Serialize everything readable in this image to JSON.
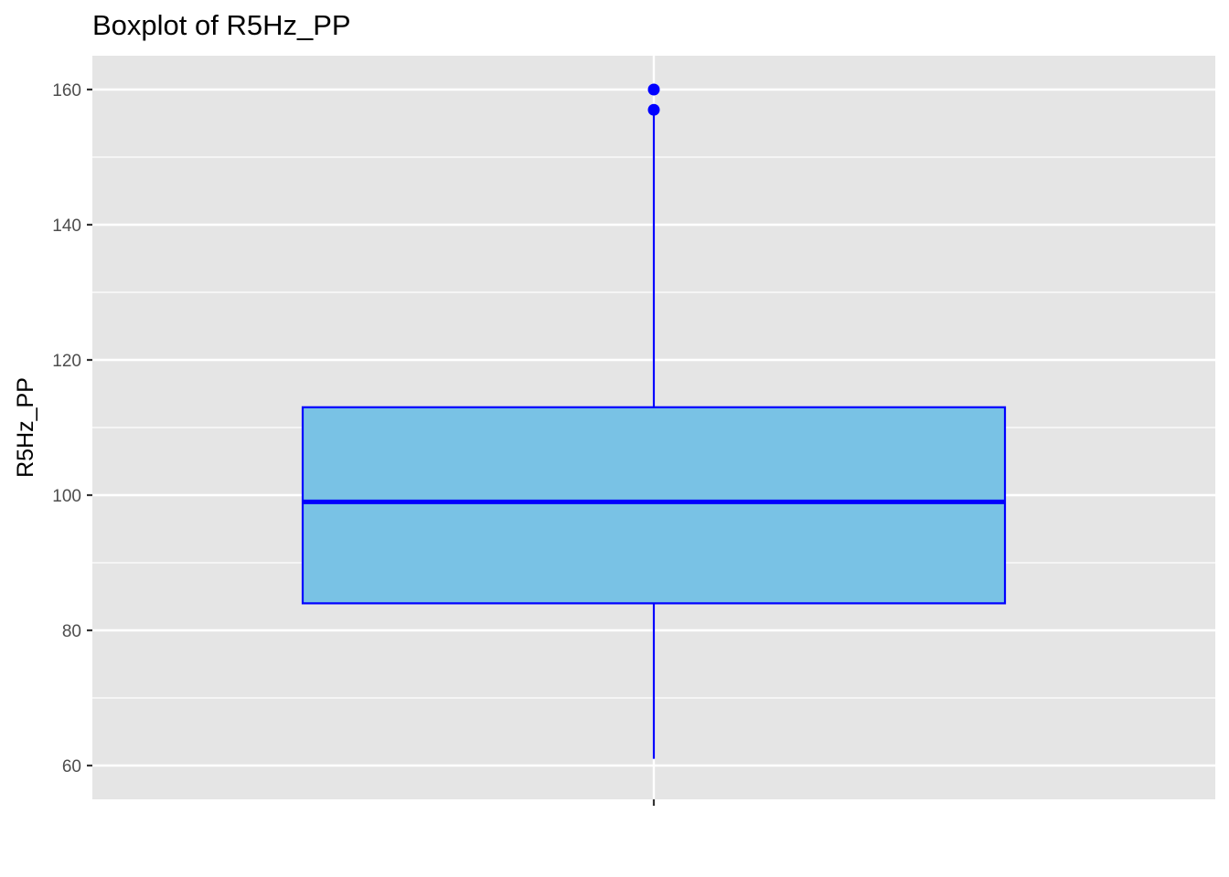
{
  "chart_data": {
    "type": "boxplot",
    "title": "Boxplot of R5Hz_PP",
    "xlabel": "",
    "ylabel": "R5Hz_PP",
    "ylim": [
      55,
      165
    ],
    "y_ticks": [
      60,
      80,
      100,
      120,
      140,
      160
    ],
    "y_tick_labels": [
      "60",
      "80",
      "100",
      "120",
      "140",
      "160"
    ],
    "y_minor_ticks": [
      70,
      90,
      110,
      130,
      150
    ],
    "grid": true,
    "box": {
      "whisker_low": 61,
      "q1": 84,
      "median": 99,
      "q3": 113,
      "whisker_high": 157
    },
    "outliers": [
      157,
      160
    ],
    "colors": {
      "box_fill": "#79c2e5",
      "box_stroke": "#0000ff",
      "outlier": "#0000ff",
      "panel_bg": "#e5e5e5",
      "grid": "#ffffff"
    }
  }
}
